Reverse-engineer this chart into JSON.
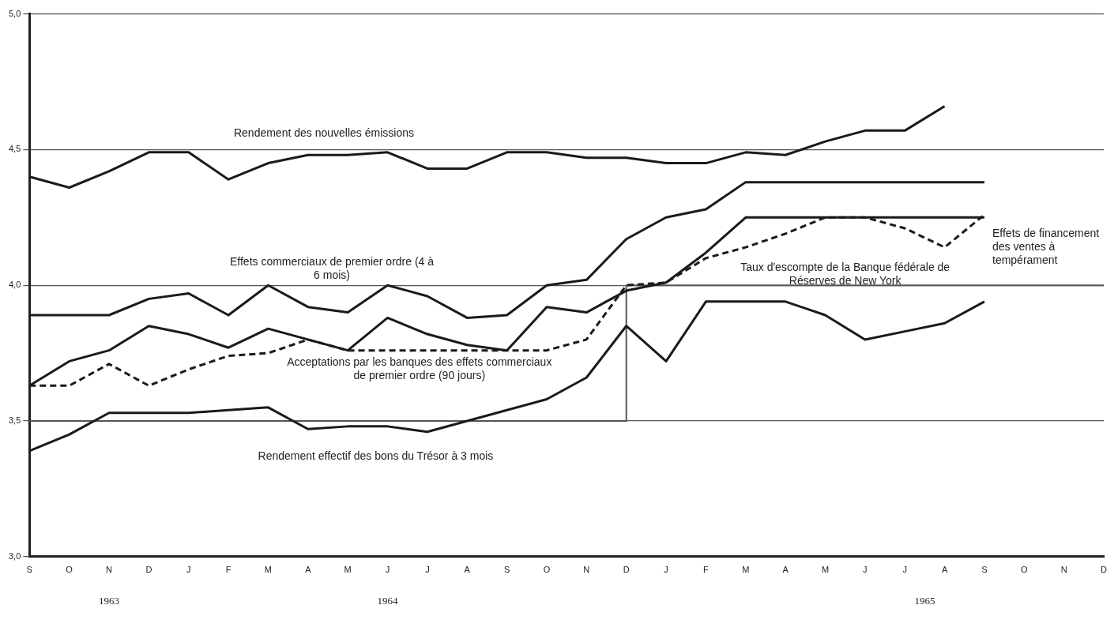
{
  "chart_data": {
    "type": "line",
    "categories": [
      "S",
      "O",
      "N",
      "D",
      "J",
      "F",
      "M",
      "A",
      "M",
      "J",
      "J",
      "A",
      "S",
      "O",
      "N",
      "D",
      "J",
      "F",
      "M",
      "A",
      "M",
      "J",
      "J",
      "A",
      "S",
      "O",
      "N",
      "D"
    ],
    "series": [
      {
        "name": "Rendement des nouvelles émissions",
        "color": "#1a1a1a",
        "values": [
          4.4,
          4.36,
          4.42,
          4.49,
          4.49,
          4.39,
          4.45,
          4.48,
          4.48,
          4.49,
          4.43,
          4.43,
          4.49,
          4.49,
          4.47,
          4.47,
          4.45,
          4.45,
          4.49,
          4.48,
          4.53,
          4.57,
          4.57,
          4.66,
          null,
          null,
          null,
          null
        ]
      },
      {
        "name": "Effets commerciaux de premier ordre (4 à 6 mois)",
        "color": "#1a1a1a",
        "values": [
          3.89,
          3.89,
          3.89,
          3.95,
          3.97,
          3.89,
          4.0,
          3.92,
          3.9,
          4.0,
          3.96,
          3.88,
          3.89,
          4.0,
          4.02,
          4.17,
          4.25,
          4.28,
          4.38,
          4.38,
          4.38,
          4.38,
          4.38,
          4.38,
          4.38,
          null,
          null,
          null
        ]
      },
      {
        "name": "Effets de financement des ventes à tempérament",
        "color": "#1a1a1a",
        "values": [
          3.63,
          3.72,
          3.76,
          3.85,
          3.82,
          3.77,
          3.84,
          3.8,
          3.76,
          3.88,
          3.82,
          3.78,
          3.76,
          3.92,
          3.9,
          3.98,
          4.01,
          4.12,
          4.25,
          4.25,
          4.25,
          4.25,
          4.25,
          4.25,
          4.25,
          null,
          null,
          null
        ]
      },
      {
        "name": "Acceptations par les banques des effets commerciaux de premier ordre (90 jours)",
        "color": "#1a1a1a",
        "line_style": "dashed",
        "values": [
          3.63,
          3.63,
          3.71,
          3.63,
          3.69,
          3.74,
          3.75,
          3.8,
          3.76,
          3.76,
          3.76,
          3.76,
          3.76,
          3.76,
          3.8,
          4.0,
          4.01,
          4.1,
          4.14,
          4.19,
          4.25,
          4.25,
          4.21,
          4.14,
          4.26,
          null,
          null,
          null
        ]
      },
      {
        "name": "Rendement effectif des bons du Trésor à 3 mois",
        "color": "#1a1a1a",
        "values": [
          3.39,
          3.45,
          3.53,
          3.53,
          3.53,
          3.54,
          3.55,
          3.47,
          3.48,
          3.48,
          3.46,
          3.5,
          3.54,
          3.58,
          3.66,
          3.85,
          3.72,
          3.94,
          3.94,
          3.94,
          3.89,
          3.8,
          3.83,
          3.86,
          3.94,
          null,
          null,
          null
        ]
      },
      {
        "name": "Taux d'escompte de la Banque fédérale de Réserves de New York",
        "type": "step",
        "color": "#555555",
        "values": [
          3.5,
          3.5,
          3.5,
          3.5,
          3.5,
          3.5,
          3.5,
          3.5,
          3.5,
          3.5,
          3.5,
          3.5,
          3.5,
          3.5,
          3.5,
          4.0,
          4.0,
          4.0,
          4.0,
          4.0,
          4.0,
          4.0,
          4.0,
          4.0,
          4.0,
          4.0,
          4.0,
          4.0
        ]
      }
    ],
    "ylim": [
      3.0,
      5.0
    ],
    "yticks": [
      {
        "value": 3.0,
        "label": "3,0"
      },
      {
        "value": 3.5,
        "label": "3,5"
      },
      {
        "value": 4.0,
        "label": "4,0"
      },
      {
        "value": 4.5,
        "label": "4,5"
      },
      {
        "value": 5.0,
        "label": "5,0"
      }
    ],
    "annotations": [
      "1963",
      "1964",
      "1965"
    ],
    "grid": "y",
    "legend": false,
    "marker": "none"
  }
}
